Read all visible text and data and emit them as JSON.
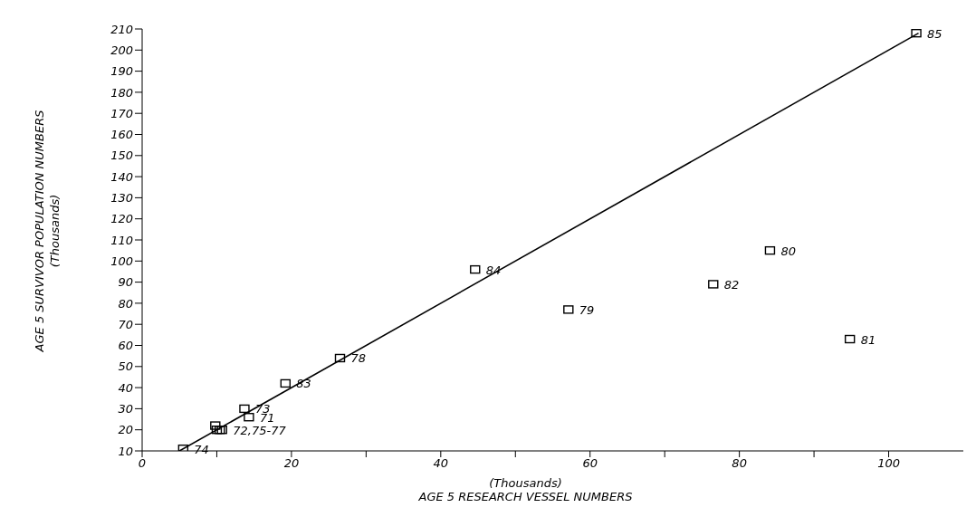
{
  "chart_data": {
    "type": "scatter",
    "xlabel": "(Thousands)\nAGE 5 RESEARCH VESSEL NUMBERS",
    "ylabel": "AGE 5 SURVIVOR POPULATION NUMBERS\n(Thousands)",
    "series": [
      {
        "color": "#000000",
        "marker": "square",
        "x": [
          5.5,
          9.8,
          10,
          10.4,
          10.7,
          14.3,
          13.7,
          26.5,
          57.1,
          84.1,
          94.8,
          76.5,
          19.2,
          44.6,
          103.7
        ],
        "values": [
          11,
          22,
          20,
          20,
          20,
          26,
          30,
          54,
          77,
          105,
          63,
          89,
          42,
          96,
          208
        ]
      },
      {
        "type": "line",
        "color": "#000000",
        "marker": "none",
        "line_style": "solid",
        "x": [
          5,
          104
        ],
        "values": [
          10,
          208
        ]
      }
    ],
    "xlim": [
      0,
      110
    ],
    "xticks": [
      0,
      {
        "value": 10,
        "label": null
      },
      20,
      {
        "value": 30,
        "label": null
      },
      40,
      {
        "value": 50,
        "label": null
      },
      60,
      {
        "value": 70,
        "label": null
      },
      80,
      {
        "value": 90,
        "label": null
      },
      100
    ],
    "ylim": [
      10,
      210
    ],
    "yticks": [
      10,
      20,
      30,
      40,
      50,
      60,
      70,
      80,
      90,
      100,
      110,
      120,
      130,
      140,
      150,
      160,
      170,
      180,
      190,
      200,
      210
    ],
    "annotations": [
      {
        "text": "74",
        "x": 5.5,
        "y": 11
      },
      {
        "text": "72,75-77",
        "x": 10.7,
        "y": 20
      },
      {
        "text": "71",
        "x": 14.3,
        "y": 26
      },
      {
        "text": "73",
        "x": 13.7,
        "y": 30
      },
      {
        "text": "83",
        "x": 19.2,
        "y": 42
      },
      {
        "text": "78",
        "x": 26.5,
        "y": 54
      },
      {
        "text": "84",
        "x": 44.6,
        "y": 96
      },
      {
        "text": "79",
        "x": 57.1,
        "y": 77
      },
      {
        "text": "82",
        "x": 76.5,
        "y": 89
      },
      {
        "text": "80",
        "x": 84.1,
        "y": 105
      },
      {
        "text": "81",
        "x": 94.8,
        "y": 63
      },
      {
        "text": "85",
        "x": 103.7,
        "y": 208
      }
    ]
  }
}
